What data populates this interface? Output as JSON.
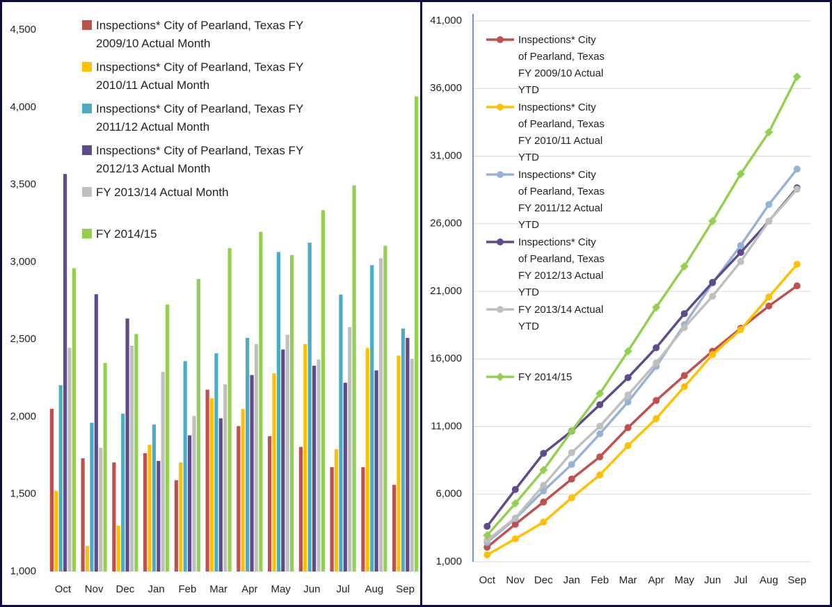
{
  "chart_data": [
    {
      "type": "bar",
      "categories": [
        "Oct",
        "Nov",
        "Dec",
        "Jan",
        "Feb",
        "Mar",
        "Apr",
        "May",
        "Jun",
        "Jul",
        "Aug",
        "Sep"
      ],
      "ylim": [
        1000,
        4500
      ],
      "yticks": [
        {
          "value": 1000,
          "label": "1,000"
        },
        {
          "value": 1500,
          "label": "1,500"
        },
        {
          "value": 2000,
          "label": "2,000"
        },
        {
          "value": 2500,
          "label": "2,500"
        },
        {
          "value": 3000,
          "label": "3,000"
        },
        {
          "value": 3500,
          "label": "3,500"
        },
        {
          "value": 4000,
          "label": "4,000"
        },
        {
          "value": 4500,
          "label": "4,500"
        }
      ],
      "grid": false,
      "series": [
        {
          "name": "Inspections* City of Pearland, Texas FY 2009/10 Actual Month",
          "color": "#c0504d",
          "values": [
            2051,
            1732,
            1705,
            1765,
            1590,
            2175,
            1940,
            1875,
            1805,
            1675,
            1675,
            1560
          ]
        },
        {
          "name": "Inspections* City of Pearland, Texas FY 2010/11 Actual Month",
          "color": "#ffc000",
          "values": [
            1521,
            1166,
            1296,
            1820,
            1705,
            2120,
            2050,
            2280,
            2470,
            1790,
            2445,
            2395
          ]
        },
        {
          "name": "Inspections* City of Pearland, Texas FY 2011/12 Actual Month",
          "color": "#4bacc6",
          "values": [
            2204,
            1961,
            2020,
            1950,
            2360,
            2410,
            2510,
            3065,
            3125,
            2790,
            2980,
            2570
          ]
        },
        {
          "name": "Inspections* City of Pearland, Texas FY 2012/13 Actual Month",
          "color": "#5f4b8b",
          "values": [
            3569,
            2792,
            2635,
            1715,
            1880,
            1990,
            2270,
            2435,
            2330,
            2220,
            2300,
            2510
          ]
        },
        {
          "name": "FY 2013/14 Actual Month",
          "color": "#bfbfbf",
          "values": [
            2446,
            1800,
            2460,
            2290,
            2005,
            2210,
            2470,
            2530,
            2370,
            2580,
            3025,
            2375
          ]
        },
        {
          "name": "FY 2014/15",
          "color": "#92d050",
          "values": [
            2959,
            2348,
            2535,
            2725,
            2890,
            3090,
            3195,
            3045,
            3335,
            3495,
            3105,
            4070
          ]
        }
      ]
    },
    {
      "type": "line",
      "categories": [
        "Oct",
        "Nov",
        "Dec",
        "Jan",
        "Feb",
        "Mar",
        "Apr",
        "May",
        "Jun",
        "Jul",
        "Aug",
        "Sep"
      ],
      "ylim": [
        1000,
        41000
      ],
      "yticks": [
        {
          "value": 1000,
          "label": "1,000"
        },
        {
          "value": 6000,
          "label": "6,000"
        },
        {
          "value": 11000,
          "label": "11,000"
        },
        {
          "value": 16000,
          "label": "16,000"
        },
        {
          "value": 21000,
          "label": "21,000"
        },
        {
          "value": 26000,
          "label": "26,000"
        },
        {
          "value": 31000,
          "label": "31,000"
        },
        {
          "value": 36000,
          "label": "36,000"
        },
        {
          "value": 41000,
          "label": "41,000"
        }
      ],
      "grid": true,
      "series": [
        {
          "name": "Inspections* City of Pearland, Texas FY 2009/10 Actual YTD",
          "color": "#c0504d",
          "marker": "circle",
          "values": [
            2080,
            3776,
            5420,
            7120,
            8760,
            10920,
            12925,
            14775,
            16575,
            18270,
            19915,
            21405
          ]
        },
        {
          "name": "Inspections* City of Pearland, Texas FY 2010/11 Actual YTD",
          "color": "#ffc000",
          "marker": "circle",
          "values": [
            1515,
            2700,
            3930,
            5730,
            7425,
            9585,
            11590,
            13950,
            16320,
            18170,
            20585,
            23000
          ]
        },
        {
          "name": "Inspections* City of Pearland, Texas FY 2011/12 Actual YTD",
          "color": "#95b3d7",
          "marker": "circle",
          "values": [
            2440,
            4185,
            6245,
            8195,
            10460,
            12820,
            15445,
            18530,
            21610,
            24390,
            27420,
            30040
          ]
        },
        {
          "name": "Inspections* City of Pearland, Texas FY 2012/13 Actual YTD",
          "color": "#5f4b8b",
          "marker": "circle",
          "values": [
            3620,
            6345,
            9020,
            10665,
            12615,
            14620,
            16830,
            19350,
            21665,
            23875,
            26185,
            28655
          ]
        },
        {
          "name": "FY 2013/14 Actual YTD",
          "color": "#bfbfbf",
          "marker": "circle",
          "values": [
            2590,
            4240,
            6655,
            9070,
            11025,
            13335,
            15700,
            18320,
            20635,
            23205,
            26185,
            28550
          ]
        },
        {
          "name": "FY 2014/15",
          "color": "#92d050",
          "marker": "diamond",
          "values": [
            2955,
            5320,
            7785,
            10665,
            13440,
            16575,
            19810,
            22845,
            26185,
            29680,
            32765,
            36875
          ]
        }
      ]
    }
  ]
}
